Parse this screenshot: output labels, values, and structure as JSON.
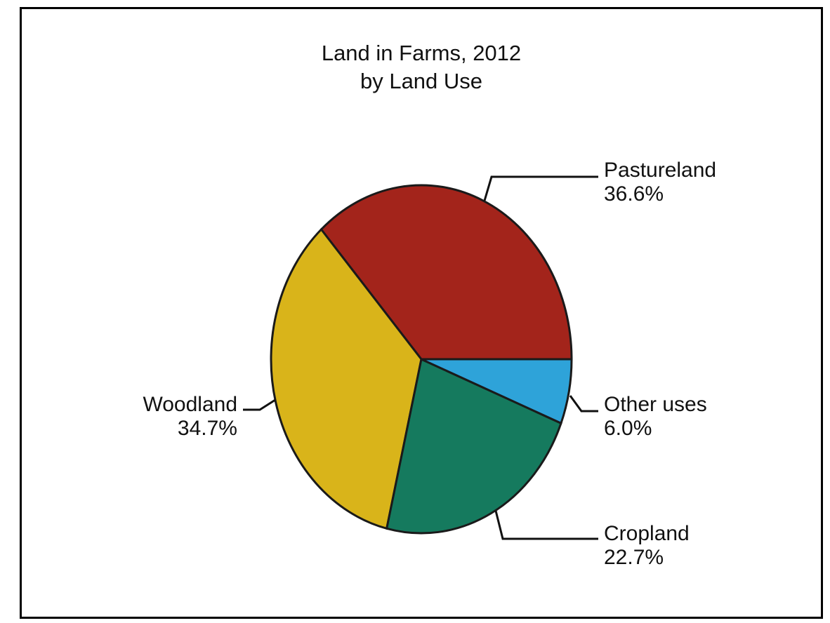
{
  "chart_data": {
    "type": "pie",
    "title": "Land in Farms, 2012",
    "subtitle": "by Land Use",
    "slices": [
      {
        "name": "Pastureland",
        "value": 36.6,
        "value_label": "36.6%",
        "color": "#a3241b"
      },
      {
        "name": "Other uses",
        "value": 6.0,
        "value_label": "6.0%",
        "color": "#2ea3d9"
      },
      {
        "name": "Cropland",
        "value": 22.7,
        "value_label": "22.7%",
        "color": "#157a5e"
      },
      {
        "name": "Woodland",
        "value": 34.7,
        "value_label": "34.7%",
        "color": "#d9b41a"
      }
    ],
    "legend": "none"
  }
}
